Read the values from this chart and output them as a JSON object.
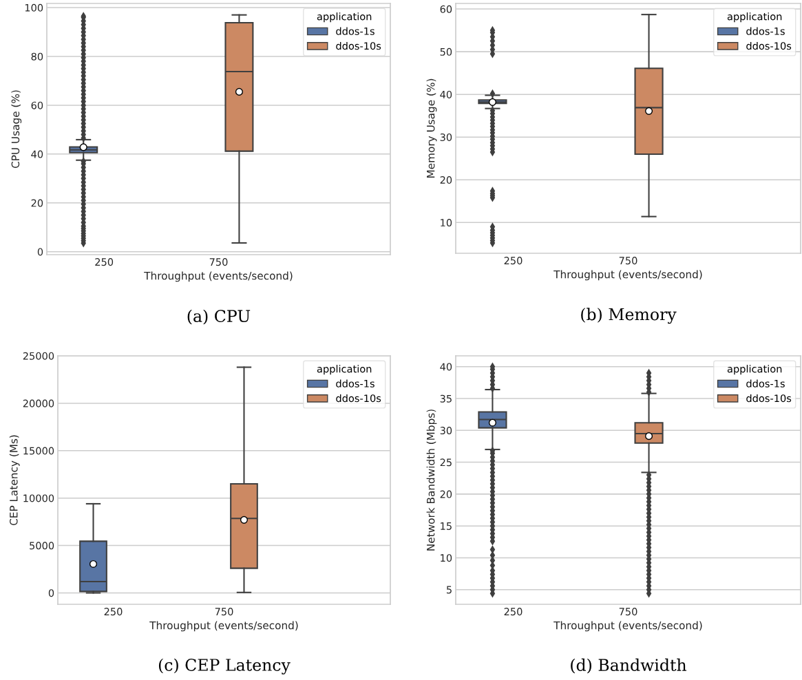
{
  "chart_data": [
    {
      "type": "box",
      "title": "(a) CPU",
      "xlabel": "Throughput (events/second)",
      "ylabel": "CPU Usage (%)",
      "legend_title": "application",
      "legend": "top right",
      "grid": "y",
      "marker": "diamond",
      "categories": [
        "250",
        "750",
        null
      ],
      "ylim": [
        -1.2,
        101.7
      ],
      "yticks": [
        0,
        20,
        40,
        60,
        80,
        100
      ],
      "series": [
        {
          "name": "ddos-1s",
          "color": "#5875a4",
          "boxes": [
            {
              "low": 37.5,
              "q1": 40.6,
              "median": 41.7,
              "q3": 42.9,
              "high": 45.9,
              "mean": 42.8,
              "outliers": [
                3.5,
                4.5,
                5.5,
                6.5,
                7.5,
                8.5,
                9.5,
                10.5,
                12,
                13.5,
                15,
                16.5,
                18,
                19.5,
                21,
                22.5,
                24,
                25.5,
                27,
                28.5,
                30,
                31.5,
                33,
                34.5,
                36,
                37,
                46.5,
                48,
                49.5,
                51,
                52.5,
                54,
                55.5,
                57,
                58.5,
                60,
                61.5,
                63,
                64.5,
                66,
                67.5,
                69,
                70.5,
                72,
                73.5,
                75,
                76.5,
                78,
                79.5,
                81,
                82.5,
                84,
                85.5,
                87,
                88.5,
                90,
                91.5,
                93,
                94.5,
                96,
                96.5
              ]
            },
            null,
            null
          ]
        },
        {
          "name": "ddos-10s",
          "color": "#cc8963",
          "boxes": [
            null,
            {
              "low": 3.6,
              "q1": 41.2,
              "median": 73.8,
              "q3": 93.8,
              "high": 97,
              "mean": 65.5
            },
            null
          ]
        }
      ]
    },
    {
      "type": "box",
      "title": "(b) Memory",
      "xlabel": "Throughput (events/second)",
      "ylabel": "Memory Usage (%)",
      "legend_title": "application",
      "legend": "top right",
      "grid": "y",
      "marker": "diamond",
      "categories": [
        "250",
        "750",
        null
      ],
      "ylim": [
        2.8,
        61.3
      ],
      "yticks": [
        10,
        20,
        30,
        40,
        50,
        60
      ],
      "series": [
        {
          "name": "ddos-1s",
          "color": "#5875a4",
          "boxes": [
            {
              "low": 36.7,
              "q1": 37.9,
              "median": 38.2,
              "q3": 38.7,
              "high": 39.8,
              "mean": 38.2,
              "outliers": [
                49.5,
                50.5,
                51.5,
                52.5,
                53.5,
                54.5,
                55,
                40.2,
                26.5,
                27.2,
                28,
                28.7,
                29.5,
                30.2,
                31,
                31.7,
                32.5,
                33.2,
                34,
                34.7,
                35.5,
                36.2,
                15.8,
                16.3,
                16.8,
                17.4,
                5.2,
                5.8,
                6.4,
                7,
                7.6,
                8.2,
                9
              ]
            },
            null,
            null
          ]
        },
        {
          "name": "ddos-10s",
          "color": "#cc8963",
          "boxes": [
            null,
            {
              "low": 11.4,
              "q1": 26,
              "median": 36.9,
              "q3": 46.1,
              "high": 58.7,
              "mean": 36.1
            },
            null
          ]
        }
      ]
    },
    {
      "type": "box",
      "title": "(c) CEP Latency",
      "xlabel": "Throughput (events/second)",
      "ylabel": "CEP Latency (Ms)",
      "legend_title": "application",
      "legend": "top right",
      "grid": "y",
      "marker": "diamond",
      "categories": [
        "250",
        "750",
        null
      ],
      "ylim": [
        -1200,
        25000
      ],
      "yticks": [
        0,
        5000,
        10000,
        15000,
        20000,
        25000
      ],
      "series": [
        {
          "name": "ddos-1s",
          "color": "#5875a4",
          "boxes": [
            {
              "low": 0,
              "q1": 150,
              "median": 1200,
              "q3": 5450,
              "high": 9400,
              "mean": 3050
            },
            null,
            null
          ]
        },
        {
          "name": "ddos-10s",
          "color": "#cc8963",
          "boxes": [
            null,
            {
              "low": 50,
              "q1": 2600,
              "median": 7850,
              "q3": 11500,
              "high": 23800,
              "mean": 7700
            },
            null
          ]
        }
      ]
    },
    {
      "type": "box",
      "title": "(d) Bandwidth",
      "xlabel": "Throughput (events/second)",
      "ylabel": "Network Bandwidth (Mbps)",
      "legend_title": "application",
      "legend": "top right",
      "grid": "y",
      "marker": "diamond",
      "categories": [
        "250",
        "750",
        null
      ],
      "ylim": [
        2.7,
        41.7
      ],
      "yticks": [
        5,
        10,
        15,
        20,
        25,
        30,
        35,
        40
      ],
      "series": [
        {
          "name": "ddos-1s",
          "color": "#5875a4",
          "boxes": [
            {
              "low": 27,
              "q1": 30.4,
              "median": 31.7,
              "q3": 32.9,
              "high": 36.4,
              "mean": 31.2,
              "outliers": [
                4.4,
                5,
                5.6,
                6.2,
                6.8,
                7.4,
                8,
                8.8,
                9.6,
                10.4,
                11.3,
                12.6,
                13.2,
                13.8,
                14.4,
                15,
                15.6,
                16.2,
                16.8,
                17.4,
                18,
                18.6,
                19.2,
                19.8,
                20.4,
                21,
                21.6,
                22.2,
                22.8,
                23.4,
                24,
                24.6,
                25.2,
                25.8,
                26.4,
                26.8,
                36.6,
                37.2,
                37.8,
                38.4,
                39,
                39.6,
                40
              ]
            },
            null,
            null
          ]
        },
        {
          "name": "ddos-10s",
          "color": "#cc8963",
          "boxes": [
            null,
            {
              "low": 23.4,
              "q1": 28,
              "median": 29.5,
              "q3": 31.2,
              "high": 35.8,
              "mean": 29.1,
              "outliers": [
                4.4,
                5,
                5.6,
                6.2,
                6.8,
                7.4,
                8,
                8.6,
                9.2,
                9.8,
                10.4,
                11,
                11.6,
                12.2,
                12.8,
                13.4,
                14,
                14.6,
                15.2,
                15.8,
                16.4,
                17,
                17.6,
                18.2,
                18.8,
                19.4,
                20,
                20.6,
                21.2,
                21.8,
                22.4,
                23,
                36,
                36.6,
                37.2,
                37.8,
                38.4,
                39
              ]
            },
            null
          ]
        }
      ]
    }
  ]
}
